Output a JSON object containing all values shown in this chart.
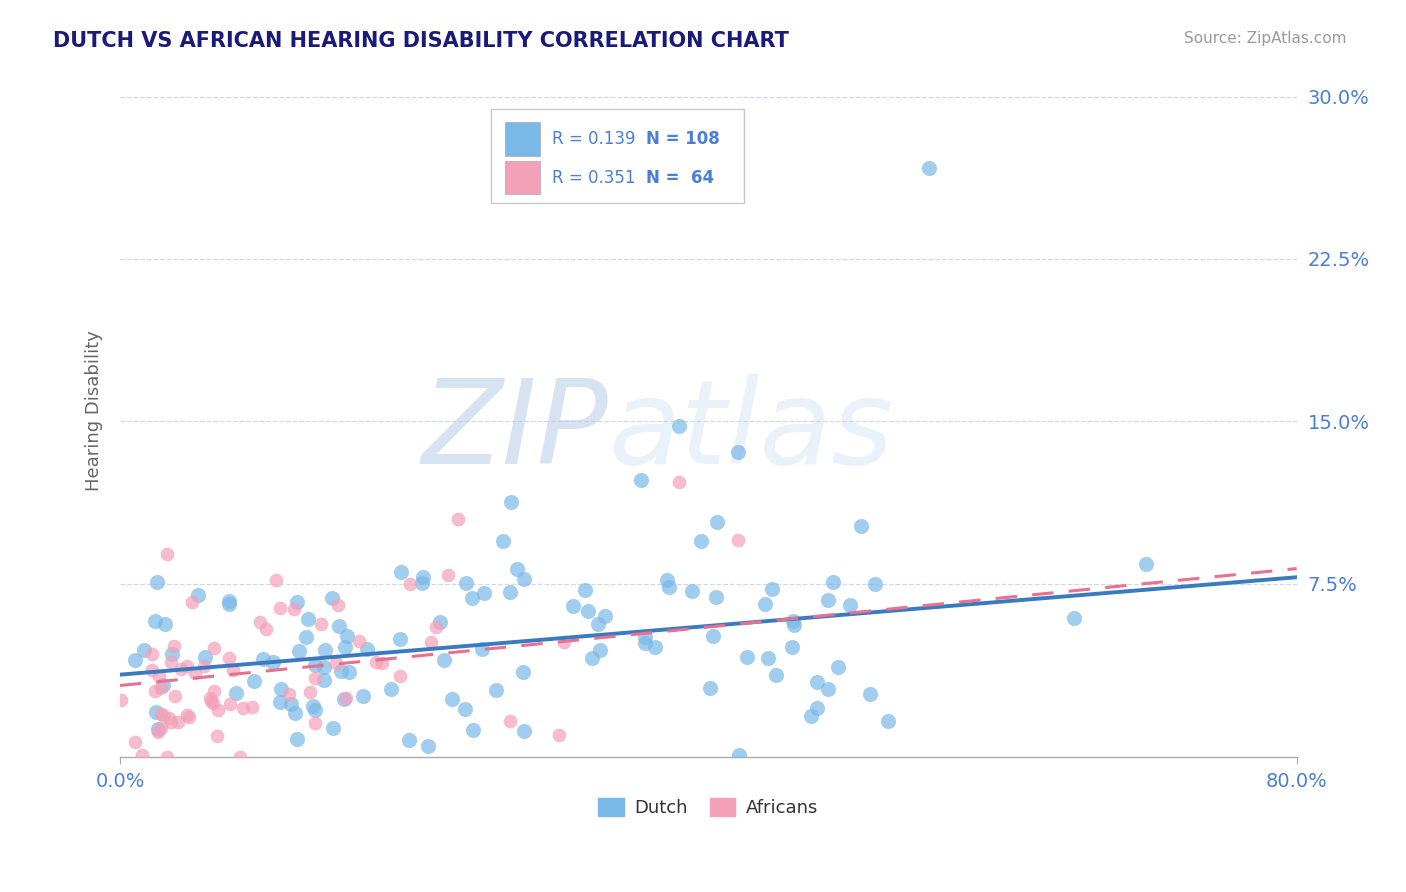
{
  "title": "DUTCH VS AFRICAN HEARING DISABILITY CORRELATION CHART",
  "source": "Source: ZipAtlas.com",
  "ylabel": "Hearing Disability",
  "xlim": [
    0.0,
    0.8
  ],
  "ylim": [
    -0.005,
    0.315
  ],
  "yticks": [
    0.075,
    0.15,
    0.225,
    0.3
  ],
  "ytick_labels": [
    "7.5%",
    "15.0%",
    "22.5%",
    "30.0%"
  ],
  "xtick_labels": [
    "0.0%",
    "80.0%"
  ],
  "xticks": [
    0.0,
    0.8
  ],
  "dutch_color": "#7ab8e8",
  "african_color": "#f4a0b8",
  "dutch_R": 0.139,
  "dutch_N": 108,
  "african_R": 0.351,
  "african_N": 64,
  "title_color": "#1a1a7a",
  "axis_label_color": "#4a7fd4",
  "watermark_zip_color": "#b8cce8",
  "watermark_atlas_color": "#ccddf0",
  "background_color": "#ffffff",
  "grid_color": "#d0d8e8",
  "legend_border_color": "#c8c8c8",
  "dutch_trend_color": "#3a7abf",
  "african_trend_color": "#e87090"
}
